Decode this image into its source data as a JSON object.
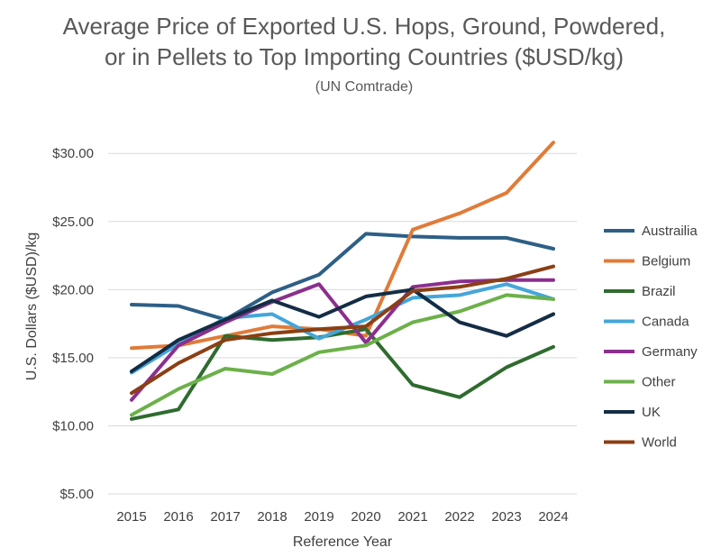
{
  "chart_data": {
    "type": "line",
    "title_line1": "Average Price of Exported U.S. Hops, Ground, Powdered,",
    "title_line2": "or in Pellets to Top Importing Countries ($USD/kg)",
    "subtitle": "(UN Comtrade)",
    "xlabel": "Reference Year",
    "ylabel": "U.S. Dollars ($USD)/kg",
    "ylim": [
      5,
      32
    ],
    "y_ticks": [
      {
        "value": 5,
        "label": "$5.00"
      },
      {
        "value": 10,
        "label": "$10.00"
      },
      {
        "value": 15,
        "label": "$15.00"
      },
      {
        "value": 20,
        "label": "$20.00"
      },
      {
        "value": 25,
        "label": "$25.00"
      },
      {
        "value": 30,
        "label": "$30.00"
      }
    ],
    "x": [
      "2015",
      "2016",
      "2017",
      "2018",
      "2019",
      "2020",
      "2021",
      "2022",
      "2023",
      "2024"
    ],
    "grid": true,
    "legend_position": "right",
    "series": [
      {
        "name": "Austrailia",
        "color": "#2e5f86",
        "values": [
          18.9,
          18.8,
          17.8,
          19.8,
          21.1,
          24.1,
          23.9,
          23.8,
          23.8,
          23.0
        ]
      },
      {
        "name": "Belgium",
        "color": "#e07b39",
        "values": [
          15.7,
          15.9,
          16.6,
          17.3,
          17.1,
          16.6,
          24.4,
          25.6,
          27.1,
          30.8
        ]
      },
      {
        "name": "Brazil",
        "color": "#2f6b2f",
        "values": [
          10.5,
          11.2,
          16.6,
          16.3,
          16.5,
          17.1,
          13.0,
          12.1,
          14.3,
          15.8
        ]
      },
      {
        "name": "Canada",
        "color": "#45a6d8",
        "values": [
          13.9,
          16.0,
          17.9,
          18.2,
          16.4,
          17.8,
          19.4,
          19.6,
          20.4,
          19.3
        ]
      },
      {
        "name": "Germany",
        "color": "#8b2f8e",
        "values": [
          11.9,
          15.9,
          17.6,
          19.1,
          20.4,
          16.1,
          20.2,
          20.6,
          20.7,
          20.7
        ]
      },
      {
        "name": "Other",
        "color": "#6cb04a",
        "values": [
          10.8,
          12.7,
          14.2,
          13.8,
          15.4,
          15.9,
          17.6,
          18.4,
          19.6,
          19.3
        ]
      },
      {
        "name": "UK",
        "color": "#142d45",
        "values": [
          14.0,
          16.3,
          17.8,
          19.2,
          18.0,
          19.5,
          20.0,
          17.6,
          16.6,
          18.2
        ]
      },
      {
        "name": "World",
        "color": "#8b3f14",
        "values": [
          12.4,
          14.6,
          16.3,
          16.8,
          17.1,
          17.3,
          19.9,
          20.2,
          20.8,
          21.7
        ]
      }
    ]
  }
}
